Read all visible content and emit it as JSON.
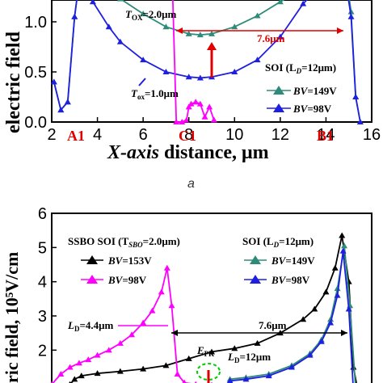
{
  "chart_data": [
    {
      "type": "line",
      "panel": "a",
      "xlabel_italic": "X-axis",
      "xlabel_rest": " distance, μm",
      "ylabel": "electric field",
      "xlim": [
        2,
        16
      ],
      "ylim": [
        0,
        1.5
      ],
      "xticks": [
        2,
        4,
        6,
        8,
        10,
        12,
        14,
        16
      ],
      "yticks": [
        0.0,
        0.5,
        1.0
      ],
      "point_labels": [
        "A1",
        "C1",
        "B1"
      ],
      "point_label_x": [
        3.0,
        8.3,
        14.8
      ],
      "annotations": {
        "tox_top_italic": "T",
        "tox_top_sub": "OX",
        "tox_top_rest": "=2.0μm",
        "tox_bottom_italic": "T",
        "tox_bottom_sub": "ox",
        "tox_bottom_rest": "=1.0μm",
        "span": "7.6μm",
        "legend_title": "SOI (L",
        "legend_title_sub": "D",
        "legend_title_rest": "=12μm)"
      },
      "series": [
        {
          "name": "BV=149V",
          "name_italic": "BV",
          "name_rest": "=149V",
          "color": "#2e8b7a",
          "x": [
            2.1,
            2.4,
            2.7,
            3.0,
            3.2,
            3.5,
            3.8,
            4.5,
            5.0,
            6.0,
            7.0,
            8.0,
            8.5,
            9.0,
            10.0,
            11.0,
            12.0,
            13.0,
            13.5,
            14.0,
            14.3,
            14.6,
            14.9,
            15.1,
            15.3,
            15.5
          ],
          "y": [
            0.4,
            0.12,
            0.2,
            1.05,
            1.4,
            1.46,
            1.4,
            1.32,
            1.23,
            1.08,
            0.95,
            0.88,
            0.87,
            0.88,
            0.95,
            1.06,
            1.2,
            1.33,
            1.36,
            1.38,
            1.4,
            1.46,
            1.42,
            1.1,
            0.25,
            0.0
          ]
        },
        {
          "name": "BV=98V",
          "name_italic": "BV",
          "name_rest": "=98V",
          "color": "#1f1fe0",
          "x": [
            2.1,
            2.4,
            2.7,
            3.0,
            3.2,
            3.5,
            3.8,
            4.5,
            5.0,
            6.0,
            7.0,
            8.0,
            8.5,
            9.0,
            10.0,
            11.0,
            12.0,
            13.0,
            13.5,
            14.0,
            14.3,
            14.6,
            14.9,
            15.1,
            15.3,
            15.5
          ],
          "y": [
            0.4,
            0.12,
            0.2,
            1.05,
            1.4,
            1.42,
            1.2,
            0.95,
            0.8,
            0.62,
            0.5,
            0.45,
            0.44,
            0.45,
            0.5,
            0.62,
            0.85,
            1.18,
            1.3,
            1.38,
            1.4,
            1.42,
            1.35,
            1.05,
            0.25,
            0.0
          ]
        },
        {
          "name": "top",
          "color": "#000000",
          "x": [
            4.0,
            5.0,
            6.0,
            7.0,
            8.0,
            9.0,
            10.0,
            11.0,
            12.0,
            13.0,
            13.5,
            14.0
          ],
          "y": [
            1.52,
            1.4,
            1.32,
            1.27,
            1.25,
            1.26,
            1.3,
            1.36,
            1.44,
            1.53,
            1.56,
            1.58
          ]
        },
        {
          "name": "ssbo",
          "color": "#ff00ff",
          "x": [
            7.25,
            7.45,
            7.7,
            7.9,
            8.0,
            8.1,
            8.3,
            8.5,
            8.7,
            8.9,
            9.1
          ],
          "y": [
            1.6,
            0.0,
            0.0,
            0.02,
            0.15,
            0.18,
            0.2,
            0.18,
            0.05,
            0.15,
            0.02
          ]
        }
      ]
    },
    {
      "type": "line",
      "panel": "b",
      "ylabel": "ric field, 10⁵V/cm",
      "ylim": [
        0,
        6
      ],
      "yticks": [
        1,
        2,
        3,
        4,
        5,
        6
      ],
      "xlim": [
        2,
        16
      ],
      "annotations": {
        "ssbo_title": "SSBO SOI (T",
        "ssbo_title_sub": "SBO",
        "ssbo_title_rest": "=2.0μm)",
        "soi_title": "SOI (L",
        "soi_title_sub": "D",
        "soi_title_rest": "=12μm)",
        "ld_left_italic": "L",
        "ld_left_sub": "D",
        "ld_left_rest": "=4.4μm",
        "ld_right_italic": "L",
        "ld_right_sub": "D",
        "ld_right_rest": "=12μm",
        "epk_italic": "E",
        "epk_sub": "PK",
        "span": "7.6μm"
      },
      "series": [
        {
          "name": "BV=153V",
          "name_italic": "BV",
          "name_rest": "=153V",
          "color": "#000000",
          "x": [
            2.0,
            2.4,
            2.8,
            3.0,
            3.3,
            4.0,
            5.0,
            6.0,
            7.0,
            8.0,
            9.0,
            10.0,
            11.0,
            12.0,
            13.0,
            13.5,
            14.0,
            14.4,
            14.7,
            15.0,
            15.2,
            15.4
          ],
          "y": [
            0.9,
            0.9,
            1.0,
            1.15,
            1.25,
            1.32,
            1.38,
            1.45,
            1.55,
            1.75,
            1.95,
            2.05,
            2.2,
            2.5,
            2.9,
            3.2,
            3.7,
            4.4,
            5.35,
            4.0,
            1.5,
            0.8
          ]
        },
        {
          "name": "BV=98V",
          "name_italic": "BV",
          "name_rest": "=98V",
          "color": "#ff00ff",
          "x": [
            2.0,
            2.4,
            2.8,
            3.2,
            3.6,
            4.0,
            4.5,
            5.0,
            5.5,
            6.0,
            6.4,
            6.8,
            7.05,
            7.25,
            7.5,
            7.8,
            8.3,
            9.0
          ],
          "y": [
            1.0,
            1.3,
            1.5,
            1.62,
            1.72,
            1.85,
            2.0,
            2.2,
            2.45,
            2.8,
            3.15,
            3.7,
            4.4,
            3.3,
            1.3,
            1.05,
            1.0,
            0.98
          ]
        },
        {
          "name": "BV=149V",
          "name_italic": "BV",
          "name_rest": "=149V",
          "color": "#2e8b7a",
          "x": [
            9.8,
            10.5,
            11.5,
            12.5,
            13.3,
            13.8,
            14.2,
            14.5,
            14.8,
            15.05,
            15.3
          ],
          "y": [
            1.15,
            1.2,
            1.3,
            1.55,
            1.9,
            2.3,
            2.9,
            3.8,
            5.05,
            3.3,
            0.85
          ]
        },
        {
          "name": "BV=98V blue",
          "color": "#1f1fe0",
          "x": [
            9.8,
            10.5,
            11.5,
            12.5,
            13.3,
            13.8,
            14.2,
            14.5,
            14.75,
            15.0,
            15.2
          ],
          "y": [
            1.1,
            1.15,
            1.25,
            1.5,
            1.85,
            2.25,
            2.8,
            3.6,
            4.9,
            3.2,
            0.8
          ]
        }
      ]
    }
  ],
  "caption_a": "a"
}
